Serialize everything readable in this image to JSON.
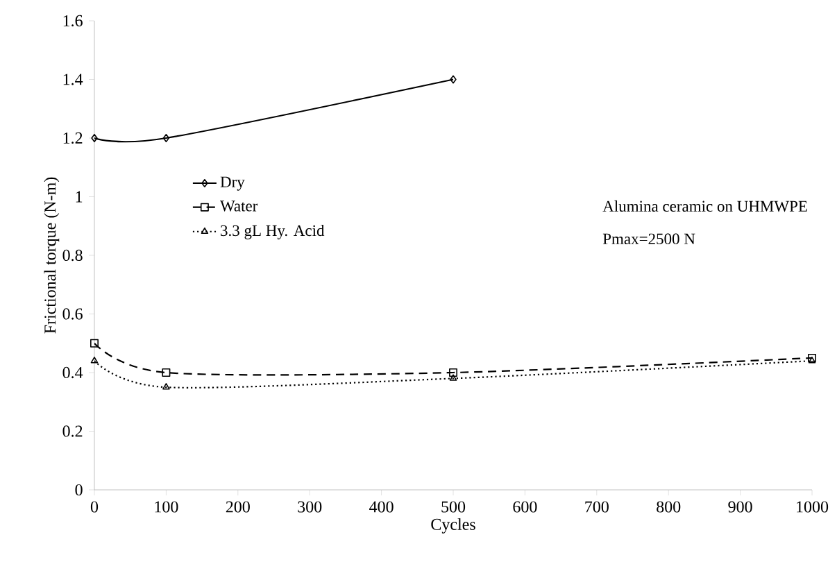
{
  "chart_data": {
    "type": "line",
    "xlabel": "Cycles",
    "ylabel": "Frictional torque (N-m)",
    "xlim": [
      0,
      1000
    ],
    "xticks": [
      0,
      100,
      200,
      300,
      400,
      500,
      600,
      700,
      800,
      900,
      1000
    ],
    "ylim": [
      0,
      1.6
    ],
    "yticks": [
      0,
      0.2,
      0.4,
      0.6,
      0.8,
      1,
      1.2,
      1.4,
      1.6
    ],
    "grid": false,
    "legend": "left",
    "annotations": [
      "Alumina ceramic on UHMWPE",
      "Pmax=2500 N"
    ],
    "series": [
      {
        "name": "Dry",
        "color": "#000000",
        "marker": "diamond",
        "line_style": "solid",
        "x": [
          0,
          100,
          500
        ],
        "values": [
          1.2,
          1.2,
          1.4
        ]
      },
      {
        "name": "Water",
        "color": "#000000",
        "marker": "square",
        "line_style": "dashed",
        "x": [
          0,
          100,
          500,
          1000
        ],
        "values": [
          0.5,
          0.4,
          0.4,
          0.45
        ]
      },
      {
        "name": "3.3 gL Hy. Acid",
        "color": "#000000",
        "marker": "triangle",
        "line_style": "dotted",
        "x": [
          0,
          100,
          500,
          1000
        ],
        "values": [
          0.44,
          0.35,
          0.38,
          0.44
        ]
      }
    ]
  }
}
